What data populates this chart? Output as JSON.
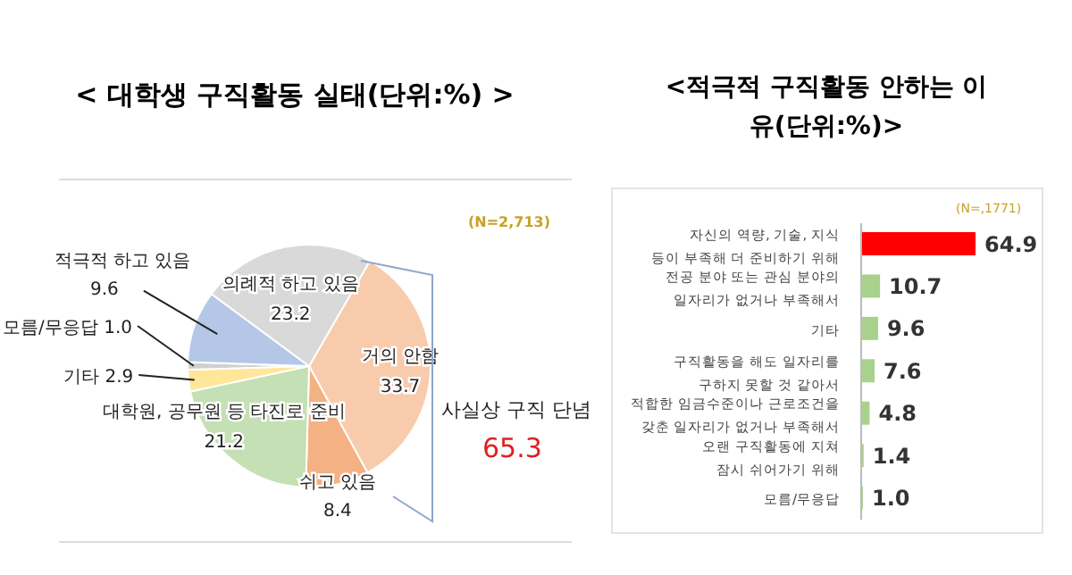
{
  "chart_data": [
    {
      "type": "pie",
      "title": "< 대학생 구직활동 실태(단위:%) >",
      "categories": [
        "거의 안함",
        "쉬고 있음",
        "대학원, 공무원 등 타진로 준비",
        "기타",
        "모름/무응답",
        "적극적 하고 있음",
        "의례적 하고 있음"
      ],
      "values": [
        33.7,
        8.4,
        21.2,
        2.9,
        1.0,
        9.6,
        23.2
      ],
      "value_labels": [
        "33.7",
        "8.4",
        "21.2",
        "2.9",
        "1.0",
        "9.6",
        "23.2"
      ],
      "colors": [
        "#f8cbad",
        "#f4b183",
        "#c5e0b4",
        "#ffe699",
        "#d0d0d0",
        "#b4c7e7",
        "#d9d9d9"
      ],
      "annotations": [
        "(N=2,713)",
        "사실상 구직 단념",
        "65.3"
      ],
      "legend": false
    },
    {
      "type": "bar",
      "orientation": "horizontal",
      "title": "<적극적 구직활동 안하는 이유(단위:%)>",
      "categories": [
        "자신의 역량, 기술, 지식 등이 부족해 더 준비하기 위해",
        "전공 분야 또는 관심 분야의 일자리가 없거나 부족해서",
        "기타",
        "구직활동을 해도 일자리를 구하지 못할 것 같아서",
        "적합한 임금수준이나 근로조건을 갖춘 일자리가 없거나 부족해서",
        "오랜 구직활동에 지쳐 잠시 쉬어가기 위해",
        "모름/무응답"
      ],
      "values": [
        64.9,
        10.7,
        9.6,
        7.6,
        4.8,
        1.4,
        1.0
      ],
      "value_labels": [
        "64.9",
        "10.7",
        "9.6",
        "7.6",
        "4.8",
        "1.4",
        "1.0"
      ],
      "colors": [
        "#ff0000",
        "#a9d18e",
        "#a9d18e",
        "#a9d18e",
        "#a9d18e",
        "#a9d18e",
        "#a9d18e"
      ],
      "annotations": [
        "(N=,1771)"
      ],
      "legend": false
    }
  ]
}
